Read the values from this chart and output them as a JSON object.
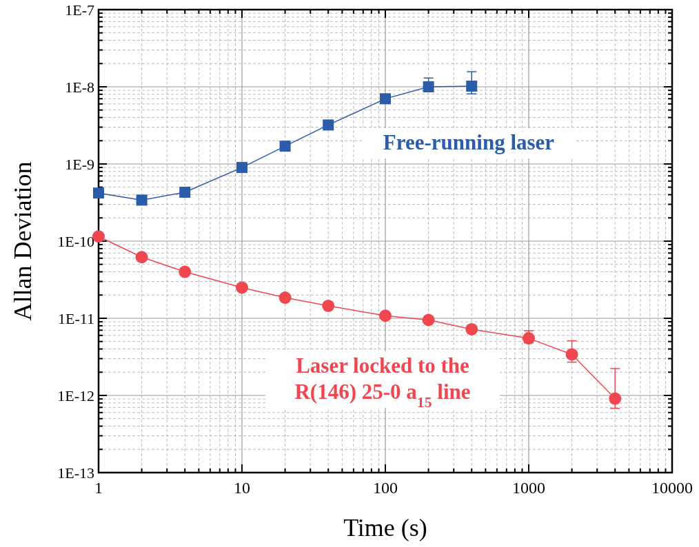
{
  "chart_data": {
    "type": "line",
    "xlabel": "Time (s)",
    "ylabel": "Allan Deviation",
    "log": "xy",
    "grid": true,
    "xlim": [
      1,
      10000
    ],
    "xticks": [
      1,
      10,
      100,
      1000,
      10000
    ],
    "ylim": [
      1e-13,
      1e-07
    ],
    "yticks": [
      {
        "value": 1e-13,
        "label": "1E-13"
      },
      {
        "value": 1e-12,
        "label": "1E-12"
      },
      {
        "value": 1e-11,
        "label": "1E-11"
      },
      {
        "value": 1e-10,
        "label": "1E-10"
      },
      {
        "value": 1e-09,
        "label": "1E-9"
      },
      {
        "value": 1e-08,
        "label": "1E-8"
      },
      {
        "value": 1e-07,
        "label": "1E-7"
      }
    ],
    "series": [
      {
        "name": "Free-running laser",
        "color": "#2a5caa",
        "marker": "square",
        "x": [
          1,
          2,
          4,
          10,
          20,
          40,
          100,
          200,
          400
        ],
        "values": [
          4.2e-10,
          3.4e-10,
          4.3e-10,
          9e-10,
          1.7e-09,
          3.2e-09,
          7e-09,
          1e-08,
          1.02e-08
        ],
        "errors": [
          null,
          null,
          null,
          null,
          null,
          null,
          null,
          [
            9.5e-09,
            1.3e-08
          ],
          [
            8.1e-09,
            1.57e-08
          ]
        ]
      },
      {
        "name": "Laser locked to the R(146) 25-0 a$_{15}$ line",
        "color": "#ef4750",
        "marker": "circle",
        "x": [
          1,
          2,
          4,
          10,
          20,
          40,
          100,
          200,
          400,
          1000,
          2000,
          4000
        ],
        "values": [
          1.15e-10,
          6.2e-11,
          4e-11,
          2.5e-11,
          1.85e-11,
          1.45e-11,
          1.08e-11,
          9.5e-12,
          7.2e-12,
          5.5e-12,
          3.4e-12,
          9.1e-13
        ],
        "errors": [
          null,
          null,
          null,
          null,
          null,
          null,
          null,
          null,
          null,
          [
            4.8e-12,
            6.9e-12
          ],
          [
            2.7e-12,
            5.1e-12
          ],
          [
            6.8e-13,
            2.23e-12
          ]
        ]
      }
    ]
  }
}
